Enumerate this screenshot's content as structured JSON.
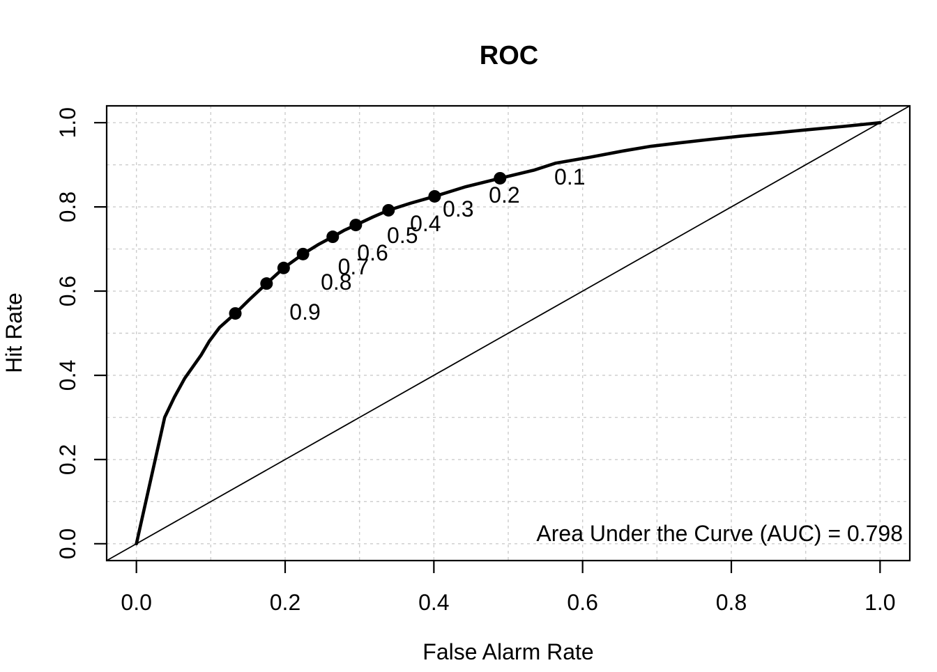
{
  "chart_data": {
    "type": "line",
    "title": "ROC",
    "xlabel": "False Alarm Rate",
    "ylabel": "Hit Rate",
    "xlim": [
      0,
      1
    ],
    "ylim": [
      0,
      1
    ],
    "x_ticks": [
      0.0,
      0.2,
      0.4,
      0.6,
      0.8,
      1.0
    ],
    "y_ticks": [
      0.0,
      0.2,
      0.4,
      0.6,
      0.8,
      1.0
    ],
    "grid": {
      "show": true,
      "step": 0.1,
      "color": "#CCCCCC",
      "dash": "4 5"
    },
    "legend": "none",
    "colors": {
      "curve": "#000000",
      "diagonal": "#000000",
      "points": "#000000",
      "text": "#000000",
      "background": "#FFFFFF"
    },
    "annotation": {
      "text": "Area Under the Curve (AUC) = 0.798",
      "auc": 0.798,
      "position": "bottom-right"
    },
    "series": [
      {
        "name": "roc-curve",
        "style": "thick-solid",
        "points": [
          [
            0.0,
            0.0
          ],
          [
            0.038,
            0.3
          ],
          [
            0.051,
            0.348
          ],
          [
            0.065,
            0.393
          ],
          [
            0.087,
            0.448
          ],
          [
            0.098,
            0.481
          ],
          [
            0.112,
            0.514
          ],
          [
            0.133,
            0.547
          ],
          [
            0.152,
            0.58
          ],
          [
            0.175,
            0.618
          ],
          [
            0.198,
            0.655
          ],
          [
            0.224,
            0.688
          ],
          [
            0.244,
            0.71
          ],
          [
            0.264,
            0.729
          ],
          [
            0.279,
            0.744
          ],
          [
            0.295,
            0.757
          ],
          [
            0.318,
            0.776
          ],
          [
            0.339,
            0.792
          ],
          [
            0.369,
            0.809
          ],
          [
            0.401,
            0.825
          ],
          [
            0.443,
            0.848
          ],
          [
            0.489,
            0.868
          ],
          [
            0.534,
            0.887
          ],
          [
            0.564,
            0.904
          ],
          [
            0.61,
            0.918
          ],
          [
            0.655,
            0.933
          ],
          [
            0.692,
            0.944
          ],
          [
            0.73,
            0.952
          ],
          [
            0.77,
            0.96
          ],
          [
            0.812,
            0.968
          ],
          [
            0.855,
            0.975
          ],
          [
            0.895,
            0.982
          ],
          [
            0.95,
            0.991
          ],
          [
            1.0,
            1.0
          ]
        ]
      },
      {
        "name": "chance-diagonal",
        "style": "thin-solid",
        "points": [
          [
            0,
            0
          ],
          [
            1,
            1
          ]
        ]
      }
    ],
    "threshold_points": [
      {
        "label": "0.9",
        "x": 0.133,
        "y": 0.547
      },
      {
        "label": "0.8",
        "x": 0.175,
        "y": 0.618
      },
      {
        "label": "0.7",
        "x": 0.198,
        "y": 0.655
      },
      {
        "label": "0.6",
        "x": 0.224,
        "y": 0.688
      },
      {
        "label": "0.5",
        "x": 0.264,
        "y": 0.729
      },
      {
        "label": "0.4",
        "x": 0.295,
        "y": 0.757
      },
      {
        "label": "0.3",
        "x": 0.339,
        "y": 0.792
      },
      {
        "label": "0.2",
        "x": 0.401,
        "y": 0.825
      },
      {
        "label": "0.1",
        "x": 0.489,
        "y": 0.868
      }
    ]
  }
}
